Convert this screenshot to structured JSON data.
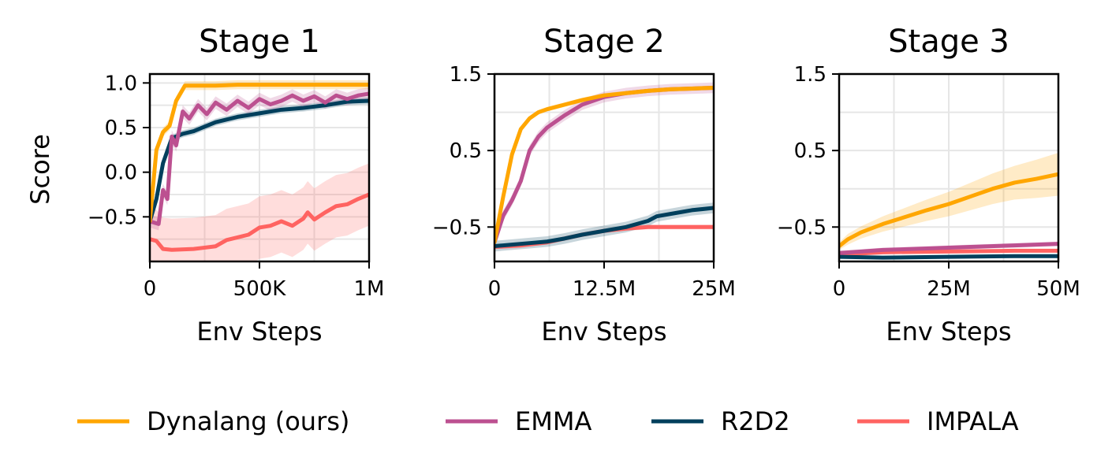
{
  "figure": {
    "ylabel": "Score",
    "xlabel": "Env Steps"
  },
  "legend": [
    {
      "name": "Dynalang (ours)",
      "color": "#FFA600"
    },
    {
      "name": "EMMA",
      "color": "#BC5090"
    },
    {
      "name": "R2D2",
      "color": "#003F5C"
    },
    {
      "name": "IMPALA",
      "color": "#FF6361"
    }
  ],
  "chart_data": [
    {
      "type": "line",
      "title": "Stage 1",
      "xlabel": "Env Steps",
      "ylabel": "Score",
      "xlim": [
        0,
        1000000
      ],
      "ylim": [
        -1.0,
        1.1
      ],
      "xticks": [
        0,
        500000,
        1000000
      ],
      "xtick_labels": [
        "0",
        "500K",
        "1M"
      ],
      "yticks": [
        -0.5,
        0.0,
        0.5,
        1.0
      ],
      "ytick_labels": [
        "−0.5",
        "0.0",
        "0.5",
        "1.0"
      ],
      "grid": true,
      "series": [
        {
          "name": "Dynalang (ours)",
          "color": "#FFA600",
          "x": [
            0,
            30000,
            60000,
            90000,
            120000,
            160000,
            200000,
            300000,
            400000,
            500000,
            600000,
            700000,
            800000,
            900000,
            1000000
          ],
          "y": [
            -0.55,
            0.25,
            0.45,
            0.52,
            0.8,
            0.97,
            0.97,
            0.97,
            0.98,
            0.98,
            0.98,
            0.98,
            0.98,
            0.98,
            0.98
          ],
          "band": 0.05
        },
        {
          "name": "EMMA",
          "color": "#BC5090",
          "x": [
            0,
            40000,
            60000,
            80000,
            100000,
            120000,
            150000,
            180000,
            220000,
            260000,
            300000,
            350000,
            400000,
            450000,
            500000,
            550000,
            600000,
            650000,
            700000,
            750000,
            800000,
            850000,
            900000,
            950000,
            1000000
          ],
          "y": [
            -0.55,
            -0.58,
            -0.2,
            -0.3,
            0.4,
            0.3,
            0.68,
            0.6,
            0.75,
            0.65,
            0.78,
            0.7,
            0.8,
            0.72,
            0.82,
            0.76,
            0.8,
            0.86,
            0.8,
            0.85,
            0.78,
            0.86,
            0.82,
            0.86,
            0.88
          ],
          "band": 0.07
        },
        {
          "name": "R2D2",
          "color": "#003F5C",
          "x": [
            0,
            30000,
            60000,
            100000,
            150000,
            200000,
            300000,
            400000,
            500000,
            600000,
            700000,
            800000,
            900000,
            1000000
          ],
          "y": [
            -0.55,
            -0.3,
            0.1,
            0.38,
            0.43,
            0.46,
            0.56,
            0.62,
            0.66,
            0.7,
            0.72,
            0.75,
            0.79,
            0.8
          ],
          "band": 0.04
        },
        {
          "name": "IMPALA",
          "color": "#FF6361",
          "x": [
            0,
            30000,
            60000,
            100000,
            200000,
            300000,
            350000,
            400000,
            450000,
            500000,
            550000,
            600000,
            650000,
            700000,
            720000,
            750000,
            800000,
            850000,
            900000,
            950000,
            1000000
          ],
          "y": [
            -0.75,
            -0.77,
            -0.86,
            -0.87,
            -0.86,
            -0.83,
            -0.76,
            -0.73,
            -0.7,
            -0.62,
            -0.6,
            -0.55,
            -0.6,
            -0.52,
            -0.45,
            -0.53,
            -0.45,
            -0.38,
            -0.36,
            -0.3,
            -0.25
          ],
          "band": 0.35
        }
      ]
    },
    {
      "type": "line",
      "title": "Stage 2",
      "xlabel": "Env Steps",
      "ylabel": "",
      "xlim": [
        0,
        25000000
      ],
      "ylim": [
        -0.95,
        1.5
      ],
      "xticks": [
        0,
        12500000,
        25000000
      ],
      "xtick_labels": [
        "0",
        "12.5M",
        "25M"
      ],
      "yticks": [
        -0.5,
        0.5,
        1.5
      ],
      "ytick_labels": [
        "−0.5",
        "0.5",
        "1.5"
      ],
      "grid": true,
      "series": [
        {
          "name": "Dynalang (ours)",
          "color": "#FFA600",
          "x": [
            0,
            1000000,
            2000000,
            3000000,
            4000000,
            5000000,
            6000000,
            8000000,
            10000000,
            12500000,
            15000000,
            17500000,
            20000000,
            22500000,
            25000000
          ],
          "y": [
            -0.7,
            -0.1,
            0.45,
            0.78,
            0.92,
            1.0,
            1.04,
            1.1,
            1.16,
            1.22,
            1.25,
            1.28,
            1.3,
            1.31,
            1.32
          ],
          "band": 0.03
        },
        {
          "name": "EMMA",
          "color": "#BC5090",
          "x": [
            0,
            1000000,
            2000000,
            3000000,
            4000000,
            5000000,
            6000000,
            7000000,
            8000000,
            10000000,
            12500000,
            15000000,
            17500000,
            20000000,
            22500000,
            25000000
          ],
          "y": [
            -0.7,
            -0.35,
            -0.15,
            0.1,
            0.5,
            0.68,
            0.8,
            0.88,
            0.96,
            1.1,
            1.2,
            1.25,
            1.28,
            1.3,
            1.31,
            1.32
          ],
          "band": 0.07
        },
        {
          "name": "R2D2",
          "color": "#003F5C",
          "x": [
            0,
            2000000,
            4000000,
            6000000,
            8000000,
            10000000,
            12500000,
            15000000,
            17500000,
            18500000,
            20000000,
            21500000,
            22500000,
            25000000
          ],
          "y": [
            -0.75,
            -0.73,
            -0.71,
            -0.69,
            -0.65,
            -0.6,
            -0.55,
            -0.5,
            -0.42,
            -0.36,
            -0.33,
            -0.3,
            -0.28,
            -0.25
          ],
          "band": 0.07
        },
        {
          "name": "IMPALA",
          "color": "#FF6361",
          "x": [
            0,
            3000000,
            6000000,
            8000000,
            10000000,
            12500000,
            15000000,
            17500000,
            20000000,
            22500000,
            25000000
          ],
          "y": [
            -0.76,
            -0.74,
            -0.7,
            -0.65,
            -0.6,
            -0.55,
            -0.52,
            -0.5,
            -0.5,
            -0.5,
            -0.5
          ],
          "band": 0.03
        }
      ]
    },
    {
      "type": "line",
      "title": "Stage 3",
      "xlabel": "Env Steps",
      "ylabel": "",
      "xlim": [
        0,
        50000000
      ],
      "ylim": [
        -0.95,
        1.5
      ],
      "xticks": [
        0,
        25000000,
        50000000
      ],
      "xtick_labels": [
        "0",
        "25M",
        "50M"
      ],
      "yticks": [
        -0.5,
        0.5,
        1.5
      ],
      "ytick_labels": [
        "−0.5",
        "0.5",
        "1.5"
      ],
      "grid": true,
      "series": [
        {
          "name": "Dynalang (ours)",
          "color": "#FFA600",
          "x": [
            0,
            2000000,
            5000000,
            10000000,
            15000000,
            20000000,
            25000000,
            30000000,
            35000000,
            40000000,
            45000000,
            50000000
          ],
          "y": [
            -0.75,
            -0.66,
            -0.57,
            -0.46,
            -0.37,
            -0.28,
            -0.2,
            -0.1,
            0.0,
            0.08,
            0.13,
            0.19
          ],
          "band": [
            0.05,
            0.07,
            0.08,
            0.1,
            0.12,
            0.14,
            0.16,
            0.18,
            0.2,
            0.22,
            0.25,
            0.28
          ]
        },
        {
          "name": "EMMA",
          "color": "#BC5090",
          "x": [
            0,
            5000000,
            10000000,
            20000000,
            30000000,
            40000000,
            50000000
          ],
          "y": [
            -0.84,
            -0.82,
            -0.8,
            -0.78,
            -0.76,
            -0.74,
            -0.72
          ],
          "band": 0.03
        },
        {
          "name": "R2D2",
          "color": "#003F5C",
          "x": [
            0,
            10000000,
            25000000,
            40000000,
            50000000
          ],
          "y": [
            -0.89,
            -0.9,
            -0.89,
            -0.88,
            -0.88
          ],
          "band": 0.015
        },
        {
          "name": "IMPALA",
          "color": "#FF6361",
          "x": [
            0,
            10000000,
            25000000,
            40000000,
            50000000
          ],
          "y": [
            -0.86,
            -0.83,
            -0.82,
            -0.81,
            -0.81
          ],
          "band": 0.02
        }
      ]
    }
  ]
}
